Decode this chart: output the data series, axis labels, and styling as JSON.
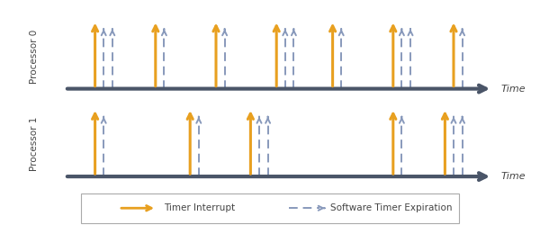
{
  "proc0_orange": [
    0.07,
    0.21,
    0.35,
    0.49,
    0.62,
    0.76,
    0.9
  ],
  "proc0_blue": [
    0.09,
    0.11,
    0.23,
    0.37,
    0.51,
    0.53,
    0.64,
    0.78,
    0.8,
    0.92
  ],
  "proc1_orange": [
    0.07,
    0.29,
    0.43,
    0.76,
    0.88
  ],
  "proc1_blue": [
    0.09,
    0.31,
    0.45,
    0.47,
    0.78,
    0.9,
    0.92
  ],
  "orange_color": "#E8A020",
  "blue_color": "#8899BB",
  "timeline_color": "#4A5568",
  "background_color": "#FFFFFF",
  "label_color": "#444444",
  "legend_orange_label": "Timer Interrupt",
  "legend_blue_label": "Software Timer Expiration",
  "proc0_label": "Processor 0",
  "proc1_label": "Processor 1",
  "time_label": "Time"
}
